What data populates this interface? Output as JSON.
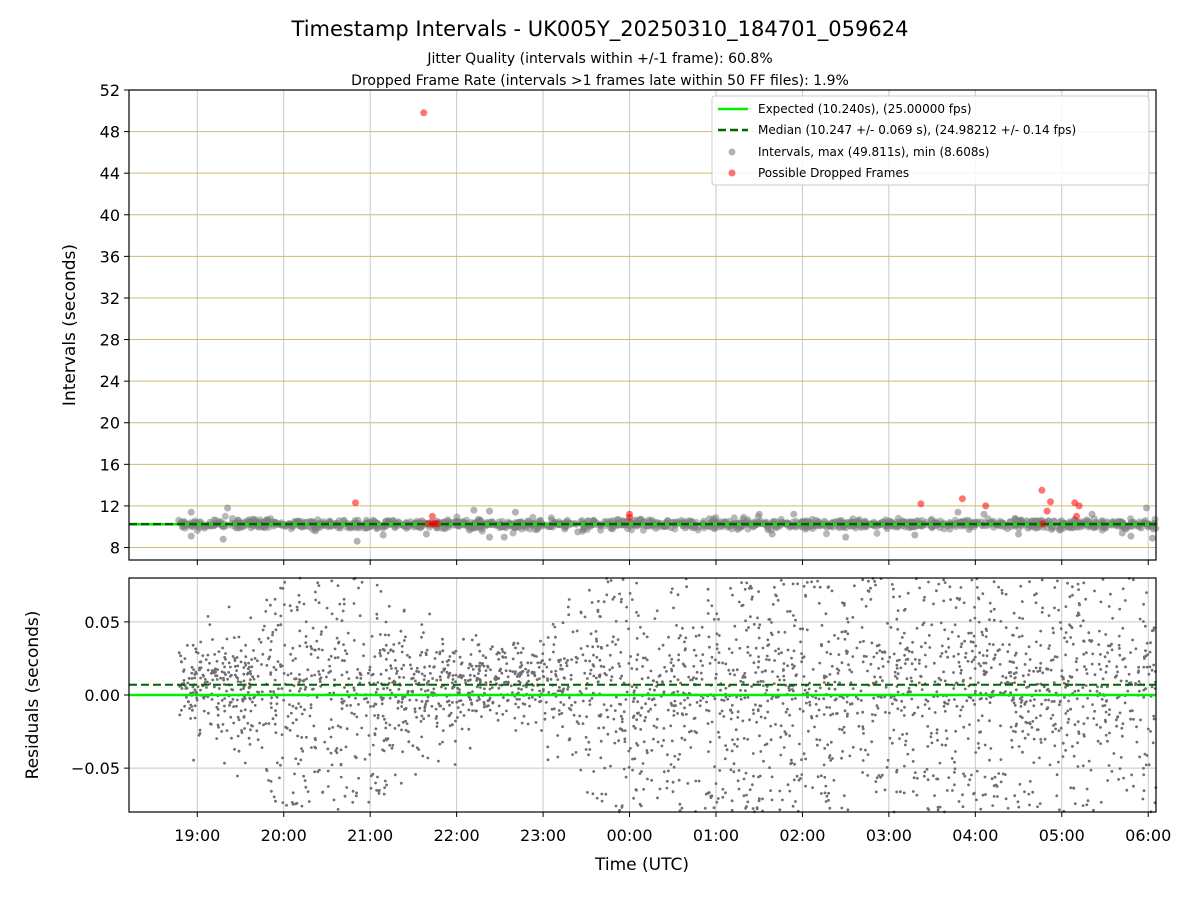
{
  "chart_data": [
    {
      "type": "scatter",
      "title": "Timestamp Intervals - UK005Y_20250310_184701_059624",
      "subtitle_lines": [
        "Jitter Quality (intervals within +/-1 frame): 60.8%",
        "Dropped Frame Rate (intervals >1 frames late within 50 FF files): 1.9%"
      ],
      "ylabel": "Intervals (seconds)",
      "xlim_hours": [
        18.21,
        30.09
      ],
      "ylim": [
        6.8,
        52
      ],
      "yticks": [
        "8",
        "12",
        "16",
        "20",
        "24",
        "28",
        "32",
        "36",
        "40",
        "44",
        "48",
        "52"
      ],
      "ytick_values": [
        8,
        12,
        16,
        20,
        24,
        28,
        32,
        36,
        40,
        44,
        48,
        52
      ],
      "grid": true,
      "legend_position": "upper right",
      "legend": [
        "Expected (10.240s), (25.00000 fps)",
        "Median (10.247 +/- 0.069 s), (24.98212 +/- 0.14 fps)",
        "Intervals, max (49.811s), min (8.608s)",
        "Possible Dropped Frames"
      ],
      "expected_interval": 10.24,
      "median_interval": 10.247,
      "series": [
        {
          "kind": "intervals",
          "range_hours": [
            18.77,
            30.09
          ],
          "typical_min": 9.3,
          "typical_max": 11.2,
          "extra_points": [
            [
              18.93,
              11.4
            ],
            [
              18.93,
              9.1
            ],
            [
              19.35,
              11.8
            ],
            [
              19.3,
              8.8
            ],
            [
              20.85,
              8.6
            ],
            [
              21.15,
              9.2
            ],
            [
              21.65,
              9.3
            ],
            [
              22.2,
              11.6
            ],
            [
              22.38,
              11.5
            ],
            [
              22.38,
              9.0
            ],
            [
              22.55,
              9.0
            ],
            [
              22.68,
              11.4
            ],
            [
              23.4,
              9.5
            ],
            [
              25.5,
              11.2
            ],
            [
              25.65,
              9.3
            ],
            [
              25.9,
              11.2
            ],
            [
              26.5,
              9.0
            ],
            [
              27.3,
              9.2
            ],
            [
              27.8,
              11.4
            ],
            [
              28.1,
              11.2
            ],
            [
              28.5,
              9.3
            ],
            [
              29.35,
              11.2
            ],
            [
              29.7,
              9.4
            ],
            [
              29.8,
              9.1
            ],
            [
              29.98,
              11.8
            ],
            [
              30.05,
              8.9
            ]
          ]
        },
        {
          "kind": "possible_dropped_frames",
          "points": [
            [
              20.83,
              12.3
            ],
            [
              21.62,
              49.811
            ],
            [
              21.67,
              10.3
            ],
            [
              21.72,
              10.3
            ],
            [
              21.75,
              10.3
            ],
            [
              21.78,
              10.3
            ],
            [
              21.72,
              11.0
            ],
            [
              24.0,
              11.2
            ],
            [
              24.0,
              10.9
            ],
            [
              27.37,
              12.2
            ],
            [
              27.85,
              12.7
            ],
            [
              28.12,
              12.0
            ],
            [
              28.77,
              13.5
            ],
            [
              28.83,
              11.5
            ],
            [
              28.87,
              12.4
            ],
            [
              28.78,
              10.3
            ],
            [
              29.15,
              12.3
            ],
            [
              29.2,
              12.0
            ],
            [
              29.17,
              11.0
            ]
          ]
        }
      ]
    },
    {
      "type": "scatter",
      "xlabel": "Time (UTC)",
      "ylabel": "Residuals (seconds)",
      "xlim_hours": [
        18.21,
        30.09
      ],
      "ylim": [
        -0.08,
        0.08
      ],
      "yticks": [
        "0.05",
        "0.00",
        "−0.05"
      ],
      "ytick_values": [
        0.05,
        0.0,
        -0.05
      ],
      "xticks": [
        "19:00",
        "20:00",
        "21:00",
        "22:00",
        "23:00",
        "00:00",
        "01:00",
        "02:00",
        "03:00",
        "04:00",
        "05:00",
        "06:00"
      ],
      "xtick_hours": [
        19,
        20,
        21,
        22,
        23,
        24,
        25,
        26,
        27,
        28,
        29,
        30
      ],
      "grid": true,
      "expected_residual": 0.0,
      "median_residual": 0.007,
      "series": [
        {
          "kind": "residuals",
          "range_hours": [
            18.77,
            30.09
          ],
          "spread": [
            [
              18.77,
              0.03
            ],
            [
              19.5,
              0.045
            ],
            [
              20.0,
              0.08
            ],
            [
              21.0,
              0.08
            ],
            [
              21.8,
              0.04
            ],
            [
              22.5,
              0.03
            ],
            [
              23.0,
              0.035
            ],
            [
              23.3,
              0.05
            ],
            [
              23.6,
              0.08
            ],
            [
              30.09,
              0.08
            ]
          ],
          "center": [
            [
              18.77,
              0.008
            ],
            [
              19.5,
              0.006
            ],
            [
              20.5,
              0.004
            ],
            [
              21.5,
              0.005
            ],
            [
              22.5,
              0.008
            ],
            [
              23.3,
              0.01
            ],
            [
              24.0,
              0.0
            ],
            [
              25.0,
              0.004
            ],
            [
              26.0,
              0.006
            ],
            [
              27.0,
              0.008
            ],
            [
              28.0,
              0.008
            ],
            [
              29.0,
              0.004
            ],
            [
              30.09,
              0.004
            ]
          ]
        }
      ]
    }
  ],
  "colors": {
    "expected": "#00ee00",
    "median": "#006400",
    "intervals": "#808080",
    "dropped": "#ff0000",
    "hgrid_top": "#cdbd6a",
    "grid": "#c8c8c8"
  }
}
